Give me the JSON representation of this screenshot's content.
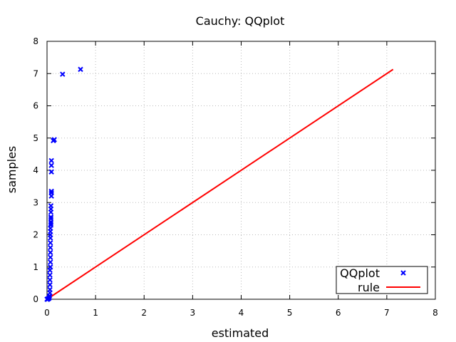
{
  "chart_data": {
    "type": "scatter",
    "title": "Cauchy: QQplot",
    "xlabel": "estimated",
    "ylabel": "samples",
    "xlim": [
      0,
      8
    ],
    "ylim": [
      0,
      8
    ],
    "xticks": [
      "0",
      "1",
      "2",
      "3",
      "4",
      "5",
      "6",
      "7",
      "8"
    ],
    "yticks": [
      "0",
      "1",
      "2",
      "3",
      "4",
      "5",
      "6",
      "7",
      "8"
    ],
    "grid": true,
    "legend_position": "bottom-right",
    "series": [
      {
        "name": "QQplot",
        "kind": "scatter",
        "marker": "x",
        "color": "#0000ff",
        "points": [
          [
            0.0,
            0.0
          ],
          [
            0.01,
            0.0
          ],
          [
            0.02,
            0.01
          ],
          [
            0.03,
            0.02
          ],
          [
            0.04,
            0.03
          ],
          [
            0.05,
            0.05
          ],
          [
            0.05,
            0.1
          ],
          [
            0.06,
            0.2
          ],
          [
            0.06,
            0.3
          ],
          [
            0.06,
            0.45
          ],
          [
            0.06,
            0.6
          ],
          [
            0.06,
            0.75
          ],
          [
            0.06,
            0.9
          ],
          [
            0.07,
            1.0
          ],
          [
            0.07,
            1.15
          ],
          [
            0.07,
            1.3
          ],
          [
            0.07,
            1.45
          ],
          [
            0.07,
            1.6
          ],
          [
            0.07,
            1.75
          ],
          [
            0.07,
            1.9
          ],
          [
            0.07,
            2.0
          ],
          [
            0.07,
            2.1
          ],
          [
            0.07,
            2.2
          ],
          [
            0.08,
            2.3
          ],
          [
            0.08,
            2.35
          ],
          [
            0.08,
            2.4
          ],
          [
            0.08,
            2.5
          ],
          [
            0.08,
            2.55
          ],
          [
            0.08,
            2.7
          ],
          [
            0.08,
            2.8
          ],
          [
            0.08,
            2.9
          ],
          [
            0.09,
            3.2
          ],
          [
            0.09,
            3.3
          ],
          [
            0.09,
            3.35
          ],
          [
            0.09,
            3.95
          ],
          [
            0.09,
            4.15
          ],
          [
            0.09,
            4.3
          ],
          [
            0.13,
            4.92
          ],
          [
            0.15,
            4.95
          ],
          [
            0.32,
            6.98
          ],
          [
            0.69,
            7.13
          ]
        ]
      },
      {
        "name": "rule",
        "kind": "line",
        "color": "#ff0000",
        "points": [
          [
            0.0,
            0.0
          ],
          [
            7.13,
            7.13
          ]
        ]
      }
    ]
  }
}
